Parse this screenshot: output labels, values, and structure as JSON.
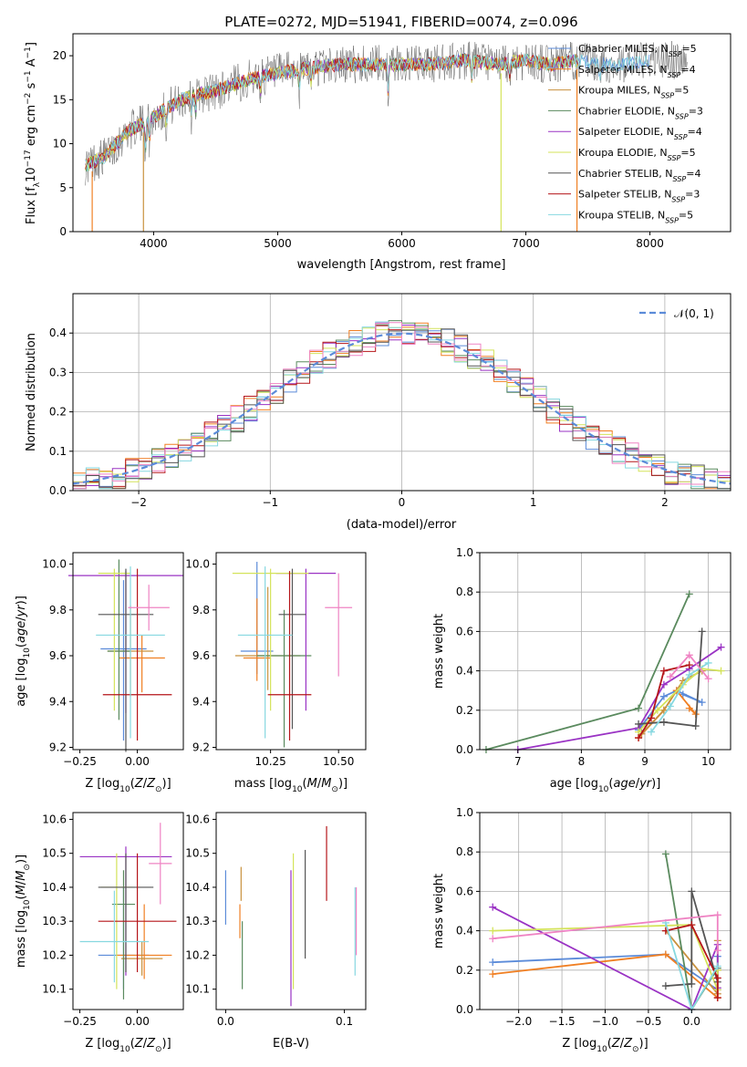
{
  "figure_title": "PLATE=0272, MJD=51941, FIBERID=0074, z=0.096",
  "colors": {
    "c0": "#5b8bd9",
    "c1": "#f07f22",
    "c2": "#c8913e",
    "c3": "#5a8a5e",
    "c4": "#9a33c4",
    "c5": "#d4e35a",
    "c6": "#555555",
    "c7": "#b51519",
    "c8": "#86d8e0",
    "c9": "#ef83c3",
    "grid": "#b0b0b0"
  },
  "legend": [
    {
      "prefix": "Chabrier MILES, N",
      "sub": "SSP",
      "suffix": "=5"
    },
    {
      "prefix": "Salpeter MILES, N",
      "sub": "SSP",
      "suffix": "=4"
    },
    {
      "prefix": "Kroupa MILES, N",
      "sub": "SSP",
      "suffix": "=5"
    },
    {
      "prefix": "Chabrier ELODIE, N",
      "sub": "SSP",
      "suffix": "=3"
    },
    {
      "prefix": "Salpeter ELODIE, N",
      "sub": "SSP",
      "suffix": "=4"
    },
    {
      "prefix": "Kroupa ELODIE, N",
      "sub": "SSP",
      "suffix": "=5"
    },
    {
      "prefix": "Chabrier STELIB, N",
      "sub": "SSP",
      "suffix": "=4"
    },
    {
      "prefix": "Salpeter STELIB, N",
      "sub": "SSP",
      "suffix": "=3"
    },
    {
      "prefix": "Kroupa STELIB, N",
      "sub": "SSP",
      "suffix": "=5"
    }
  ],
  "chart_data": [
    {
      "id": "spectrum",
      "type": "line",
      "xlabel": "wavelength [Angstrom, rest frame]",
      "ylabel": "Flux [f_λ10^-17 erg cm^-2 s^-1 A^-1]",
      "xlim": [
        3350,
        8650
      ],
      "ylim": [
        0,
        22.5
      ],
      "xticks": [
        4000,
        5000,
        6000,
        7000,
        8000
      ],
      "yticks": [
        0,
        5,
        10,
        15,
        20
      ],
      "grid": false,
      "legend_position": "upper-right",
      "continuum": {
        "x": [
          3450,
          3600,
          3800,
          3950,
          4100,
          4300,
          4500,
          4800,
          5000,
          5200,
          5500,
          5800,
          6000,
          6200,
          6500,
          6800,
          7000,
          7200,
          7400,
          7600,
          7800,
          8000,
          8300
        ],
        "y": [
          7.5,
          8.5,
          11.5,
          12.5,
          14.0,
          15.5,
          16.0,
          17.5,
          18.0,
          18.5,
          19.0,
          19.0,
          19.0,
          19.0,
          19.5,
          19.0,
          19.5,
          19.0,
          19.5,
          19.0,
          19.0,
          19.5,
          19.5
        ]
      },
      "dropouts_x": [
        3505,
        3918,
        6800,
        7412
      ]
    },
    {
      "id": "residuals",
      "type": "area",
      "xlabel": "(data-model)/error",
      "ylabel": "Normed distribution",
      "xlim": [
        -2.5,
        2.5
      ],
      "ylim": [
        0,
        0.5
      ],
      "xticks": [
        -2,
        -1,
        0,
        1,
        2
      ],
      "yticks": [
        0.0,
        0.1,
        0.2,
        0.3,
        0.4
      ],
      "grid": true,
      "legend_position": "upper-right",
      "reference_label": "𝒩(0, 1)",
      "bin_width": 0.1,
      "bins_from": -2.5,
      "bins_to": 2.5
    },
    {
      "id": "age_vs_Z",
      "type": "scatter",
      "xlabel": "Z [log10(Z/Z⊙)]",
      "ylabel": "age [log10(age/yr)]",
      "xlim": [
        -0.28,
        0.2
      ],
      "ylim": [
        9.19,
        10.05
      ],
      "xticks": [
        -0.25,
        0.0
      ],
      "yticks": [
        9.2,
        9.4,
        9.6,
        9.8,
        10.0
      ],
      "points": [
        {
          "x": -0.06,
          "y": 9.63,
          "xerr": 0.1,
          "yerr_lo": 0.4,
          "yerr_hi": 0.3
        },
        {
          "x": 0.02,
          "y": 9.59,
          "xerr": 0.1,
          "yerr_lo": 0.15,
          "yerr_hi": 0.1
        },
        {
          "x": -0.03,
          "y": 9.62,
          "xerr": 0.1,
          "yerr_lo": 0.2,
          "yerr_hi": 0.2
        },
        {
          "x": -0.08,
          "y": 9.62,
          "xerr": 0.05,
          "yerr_lo": 0.3,
          "yerr_hi": 0.4
        },
        {
          "x": -0.05,
          "y": 9.95,
          "xerr": 0.25,
          "yerr_lo": 0.6,
          "yerr_hi": 0.02
        },
        {
          "x": -0.1,
          "y": 9.96,
          "xerr": 0.07,
          "yerr_lo": 0.6,
          "yerr_hi": 0.02
        },
        {
          "x": -0.05,
          "y": 9.78,
          "xerr": 0.12,
          "yerr_lo": 0.6,
          "yerr_hi": 0.2
        },
        {
          "x": 0.0,
          "y": 9.43,
          "xerr": 0.15,
          "yerr_lo": 0.2,
          "yerr_hi": 0.55
        },
        {
          "x": -0.03,
          "y": 9.69,
          "xerr": 0.15,
          "yerr_lo": 0.45,
          "yerr_hi": 0.3
        },
        {
          "x": 0.05,
          "y": 9.81,
          "xerr": 0.09,
          "yerr_lo": 0.1,
          "yerr_hi": 0.1
        }
      ]
    },
    {
      "id": "age_vs_mass",
      "type": "scatter",
      "xlabel": "mass [log10(M/M⊙)]",
      "ylabel": "",
      "xlim": [
        10.05,
        10.6
      ],
      "ylim": [
        9.19,
        10.05
      ],
      "xticks": [
        10.25,
        10.5
      ],
      "yticks": [
        9.2,
        9.4,
        9.6,
        9.8,
        10.0
      ],
      "points": [
        {
          "x": 10.2,
          "y": 9.62,
          "xerr": 0.06,
          "yerr_lo": 0.1,
          "yerr_hi": 0.39
        },
        {
          "x": 10.2,
          "y": 9.59,
          "xerr": 0.05,
          "yerr_lo": 0.1,
          "yerr_hi": 0.26
        },
        {
          "x": 10.24,
          "y": 9.6,
          "xerr": 0.12,
          "yerr_lo": 0.15,
          "yerr_hi": 0.3
        },
        {
          "x": 10.3,
          "y": 9.6,
          "xerr": 0.1,
          "yerr_lo": 0.4,
          "yerr_hi": 0.2
        },
        {
          "x": 10.38,
          "y": 9.96,
          "xerr": 0.11,
          "yerr_lo": 0.6,
          "yerr_hi": 0.02
        },
        {
          "x": 10.25,
          "y": 9.96,
          "xerr": 0.14,
          "yerr_lo": 0.6,
          "yerr_hi": 0.02
        },
        {
          "x": 10.33,
          "y": 9.78,
          "xerr": 0.05,
          "yerr_lo": 0.5,
          "yerr_hi": 0.2
        },
        {
          "x": 10.32,
          "y": 9.43,
          "xerr": 0.08,
          "yerr_lo": 0.2,
          "yerr_hi": 0.54
        },
        {
          "x": 10.23,
          "y": 9.69,
          "xerr": 0.1,
          "yerr_lo": 0.45,
          "yerr_hi": 0.3
        },
        {
          "x": 10.5,
          "y": 9.81,
          "xerr": 0.05,
          "yerr_lo": 0.3,
          "yerr_hi": 0.15
        }
      ]
    },
    {
      "id": "mass_weight_vs_age",
      "type": "line",
      "xlabel": "age [log10(age/yr)]",
      "ylabel": "mass weight",
      "xlim": [
        6.4,
        10.35
      ],
      "ylim": [
        0,
        1.0
      ],
      "xticks": [
        7,
        8,
        9,
        10
      ],
      "yticks": [
        0.0,
        0.2,
        0.4,
        0.6,
        0.8,
        1.0
      ],
      "grid": true,
      "series": [
        {
          "x": [
            8.9,
            9.3,
            9.5,
            9.9,
            9.6
          ],
          "y": [
            0.1,
            0.27,
            0.3,
            0.24,
            0.28
          ]
        },
        {
          "x": [
            8.9,
            9.3,
            9.5,
            9.8,
            9.7
          ],
          "y": [
            0.06,
            0.2,
            0.3,
            0.18,
            0.21
          ]
        },
        {
          "x": [
            8.95,
            9.3,
            9.6,
            9.9
          ],
          "y": [
            0.08,
            0.2,
            0.35,
            0.4
          ]
        },
        {
          "x": [
            6.5,
            8.9,
            9.7
          ],
          "y": [
            0.0,
            0.21,
            0.79
          ]
        },
        {
          "x": [
            7.0,
            8.9,
            9.3,
            9.7,
            10.2
          ],
          "y": [
            0.0,
            0.11,
            0.33,
            0.41,
            0.52
          ]
        },
        {
          "x": [
            8.9,
            9.2,
            9.6,
            9.9,
            10.2
          ],
          "y": [
            0.09,
            0.2,
            0.33,
            0.41,
            0.4
          ]
        },
        {
          "x": [
            8.9,
            9.3,
            9.8,
            9.9
          ],
          "y": [
            0.13,
            0.14,
            0.12,
            0.6
          ]
        },
        {
          "x": [
            8.9,
            9.1,
            9.3,
            9.7
          ],
          "y": [
            0.06,
            0.16,
            0.4,
            0.43
          ]
        },
        {
          "x": [
            9.1,
            9.4,
            9.7,
            10.0
          ],
          "y": [
            0.09,
            0.22,
            0.38,
            0.44
          ]
        },
        {
          "x": [
            9.4,
            9.7,
            10.0
          ],
          "y": [
            0.37,
            0.48,
            0.36
          ]
        }
      ]
    },
    {
      "id": "mass_vs_Z",
      "type": "scatter",
      "xlabel": "Z [log10(Z/Z⊙)]",
      "ylabel": "mass [log10(M/M⊙)]",
      "xlim": [
        -0.28,
        0.2
      ],
      "ylim": [
        10.04,
        10.62
      ],
      "xticks": [
        -0.25,
        0.0
      ],
      "yticks": [
        10.1,
        10.2,
        10.3,
        10.4,
        10.5,
        10.6
      ],
      "points": [
        {
          "x": -0.06,
          "y": 10.2,
          "xerr": 0.11,
          "yerr_lo": 0.1,
          "yerr_hi": 0.2
        },
        {
          "x": 0.03,
          "y": 10.2,
          "xerr": 0.12,
          "yerr_lo": 0.07,
          "yerr_hi": 0.15
        },
        {
          "x": 0.02,
          "y": 10.19,
          "xerr": 0.09,
          "yerr_lo": 0.05,
          "yerr_hi": 0.05
        },
        {
          "x": -0.06,
          "y": 10.35,
          "xerr": 0.05,
          "yerr_lo": 0.28,
          "yerr_hi": 0.1
        },
        {
          "x": -0.05,
          "y": 10.49,
          "xerr": 0.2,
          "yerr_lo": 0.35,
          "yerr_hi": 0.03
        },
        {
          "x": -0.09,
          "y": 10.4,
          "xerr": 0.07,
          "yerr_lo": 0.3,
          "yerr_hi": 0.1
        },
        {
          "x": -0.05,
          "y": 10.4,
          "xerr": 0.12,
          "yerr_lo": 0.25,
          "yerr_hi": 0.1
        },
        {
          "x": 0.0,
          "y": 10.3,
          "xerr": 0.17,
          "yerr_lo": 0.15,
          "yerr_hi": 0.2
        },
        {
          "x": -0.1,
          "y": 10.24,
          "xerr": 0.15,
          "yerr_lo": 0.12,
          "yerr_hi": 0.15
        },
        {
          "x": 0.1,
          "y": 10.47,
          "xerr": 0.05,
          "yerr_lo": 0.12,
          "yerr_hi": 0.12
        }
      ]
    },
    {
      "id": "mass_vs_EBV",
      "type": "scatter",
      "xlabel": "E(B-V)",
      "ylabel": "",
      "xlim": [
        -0.008,
        0.118
      ],
      "ylim": [
        10.04,
        10.62
      ],
      "xticks": [
        0.0,
        0.1
      ],
      "yticks": [
        10.1,
        10.2,
        10.3,
        10.4,
        10.5,
        10.6
      ],
      "points": [
        {
          "x": 0.0,
          "y": 10.37,
          "yerr_lo": 0.08,
          "yerr_hi": 0.08
        },
        {
          "x": 0.012,
          "y": 10.3,
          "yerr_lo": 0.05,
          "yerr_hi": 0.05
        },
        {
          "x": 0.013,
          "y": 10.4,
          "yerr_lo": 0.04,
          "yerr_hi": 0.06
        },
        {
          "x": 0.014,
          "y": 10.2,
          "yerr_lo": 0.1,
          "yerr_hi": 0.1
        },
        {
          "x": 0.055,
          "y": 10.25,
          "yerr_lo": 0.2,
          "yerr_hi": 0.2
        },
        {
          "x": 0.057,
          "y": 10.3,
          "yerr_lo": 0.2,
          "yerr_hi": 0.2
        },
        {
          "x": 0.067,
          "y": 10.36,
          "yerr_lo": 0.17,
          "yerr_hi": 0.15
        },
        {
          "x": 0.085,
          "y": 10.46,
          "yerr_lo": 0.1,
          "yerr_hi": 0.12
        },
        {
          "x": 0.109,
          "y": 10.27,
          "yerr_lo": 0.13,
          "yerr_hi": 0.13
        },
        {
          "x": 0.11,
          "y": 10.3,
          "yerr_lo": 0.1,
          "yerr_hi": 0.1
        }
      ]
    },
    {
      "id": "mass_weight_vs_Z",
      "type": "line",
      "xlabel": "Z [log10(Z/Z⊙)]",
      "ylabel": "mass weight",
      "xlim": [
        -2.45,
        0.45
      ],
      "ylim": [
        0,
        1.0
      ],
      "xticks": [
        -2.0,
        -1.5,
        -1.0,
        -0.5,
        0.0
      ],
      "yticks": [
        0.0,
        0.2,
        0.4,
        0.6,
        0.8,
        1.0
      ],
      "grid": true,
      "series": [
        {
          "x": [
            -2.3,
            -0.3,
            0.3,
            0.3
          ],
          "y": [
            0.24,
            0.28,
            0.1,
            0.27
          ]
        },
        {
          "x": [
            -2.3,
            -0.3,
            0.3,
            0.3
          ],
          "y": [
            0.18,
            0.28,
            0.06,
            0.2
          ]
        },
        {
          "x": [
            -0.3,
            0.3,
            0.3
          ],
          "y": [
            0.4,
            0.08,
            0.35
          ]
        },
        {
          "x": [
            -0.3,
            0.0,
            0.3
          ],
          "y": [
            0.79,
            0.0,
            0.21
          ]
        },
        {
          "x": [
            -2.3,
            0.0,
            0.3,
            0.3
          ],
          "y": [
            0.52,
            0.0,
            0.33,
            0.11
          ]
        },
        {
          "x": [
            -2.3,
            0.0,
            0.3,
            0.3
          ],
          "y": [
            0.4,
            0.43,
            0.1,
            0.2
          ]
        },
        {
          "x": [
            -0.3,
            0.0,
            0.0,
            0.3
          ],
          "y": [
            0.12,
            0.13,
            0.6,
            0.14
          ]
        },
        {
          "x": [
            -0.3,
            0.0,
            0.3,
            0.3
          ],
          "y": [
            0.4,
            0.43,
            0.16,
            0.06
          ]
        },
        {
          "x": [
            -0.3,
            0.0,
            0.3
          ],
          "y": [
            0.44,
            0.0,
            0.22
          ]
        },
        {
          "x": [
            -2.3,
            0.3,
            0.3
          ],
          "y": [
            0.36,
            0.48,
            0.3
          ]
        }
      ]
    }
  ]
}
